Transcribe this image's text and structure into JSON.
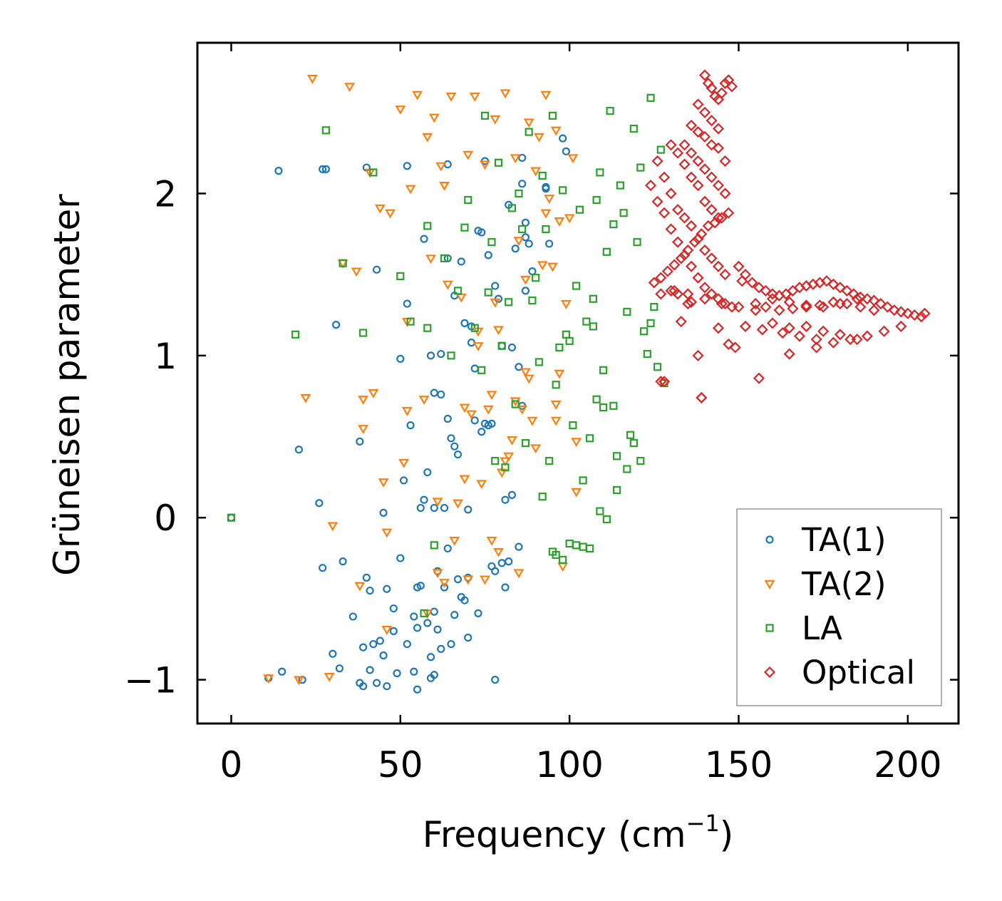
{
  "chart_data": {
    "type": "scatter",
    "title": "",
    "xlabel": "Frequency (cm",
    "xlabel_sup": "−1",
    "xlabel_close": ")",
    "ylabel": "Grüneisen parameter",
    "xlim": [
      -10,
      215
    ],
    "ylim": [
      -1.27,
      2.93
    ],
    "xticks": [
      0,
      50,
      100,
      150,
      200
    ],
    "yticks": [
      -1,
      0,
      1,
      2
    ],
    "xtick_labels": [
      "0",
      "50",
      "100",
      "150",
      "200"
    ],
    "ytick_labels": [
      "−1",
      "0",
      "1",
      "2"
    ],
    "grid": false,
    "legend_position": "lower-right",
    "colors": {
      "TA(1)": "#1f77b4",
      "TA(2)": "#ff7f0e",
      "LA": "#2ca02c",
      "Optical": "#d62728"
    },
    "series": [
      {
        "name": "TA(1)",
        "marker": "circle",
        "x": [
          0,
          11,
          15,
          20,
          26,
          27,
          28,
          30,
          31,
          32,
          33,
          36,
          38,
          39,
          40,
          41,
          41,
          43,
          44,
          45,
          46,
          46,
          48,
          50,
          50,
          51,
          52,
          52,
          53,
          54,
          54,
          55,
          55,
          56,
          56,
          57,
          57,
          58,
          58,
          59,
          59,
          60,
          60,
          60,
          61,
          61,
          62,
          62,
          63,
          63,
          64,
          64,
          64,
          65,
          65,
          66,
          66,
          66,
          67,
          67,
          68,
          68,
          69,
          69,
          70,
          70,
          71,
          71,
          72,
          72,
          73,
          73,
          74,
          74,
          75,
          76,
          76,
          77,
          77,
          78,
          78,
          79,
          80,
          80,
          81,
          81,
          82,
          82,
          83,
          83,
          84,
          85,
          86,
          86,
          87,
          87,
          88,
          89,
          93,
          94,
          98,
          14,
          27,
          40,
          52,
          64,
          75,
          86,
          99,
          87,
          93,
          21,
          43,
          55,
          78,
          85,
          70,
          60,
          48,
          39,
          49,
          45,
          38,
          42,
          59,
          62
        ],
        "y": [
          0,
          -0.99,
          -0.95,
          0.42,
          0.09,
          -0.31,
          2.15,
          -0.84,
          1.19,
          -0.93,
          -0.27,
          -0.61,
          0.47,
          -0.8,
          -0.37,
          -0.94,
          -0.45,
          1.53,
          -0.76,
          0.03,
          -1.04,
          -0.44,
          -0.56,
          0.98,
          -0.25,
          0.23,
          1.32,
          -0.78,
          0.57,
          -0.61,
          -0.95,
          -0.43,
          -0.68,
          0.06,
          -0.42,
          1.72,
          0.11,
          0.28,
          -0.65,
          1.0,
          -0.86,
          0.77,
          0.06,
          -0.58,
          -0.33,
          -0.69,
          1.01,
          0.76,
          0.06,
          -0.43,
          0.61,
          -0.19,
          1.6,
          0.49,
          -0.78,
          0.44,
          1.37,
          -0.6,
          0.39,
          -0.38,
          1.58,
          -0.49,
          1.2,
          -0.51,
          0.05,
          -0.37,
          1.18,
          1.08,
          0.6,
          0.92,
          1.77,
          -0.59,
          0.53,
          1.76,
          0.58,
          0.57,
          1.62,
          -0.3,
          0.58,
          -0.33,
          1.43,
          1.35,
          -0.28,
          1.06,
          0.11,
          -0.43,
          1.93,
          -0.27,
          1.05,
          0.14,
          1.66,
          0.93,
          2.06,
          0.69,
          1.73,
          1.4,
          1.69,
          1.52,
          2.04,
          1.69,
          2.34,
          2.14,
          2.15,
          2.16,
          2.17,
          2.18,
          2.2,
          2.22,
          2.26,
          1.82,
          2.03,
          -1.0,
          -1.02,
          -1.06,
          -1.0,
          -0.18,
          -0.74,
          -0.97,
          -0.7,
          -1.04,
          -0.96,
          -0.85,
          -1.02,
          -0.78,
          -0.99,
          -0.81
        ]
      },
      {
        "name": "TA(2)",
        "marker": "triangle-down",
        "x": [
          11,
          20,
          22,
          24,
          29,
          30,
          33,
          35,
          37,
          38,
          39,
          42,
          44,
          45,
          46,
          47,
          50,
          51,
          52,
          53,
          55,
          57,
          59,
          60,
          61,
          62,
          63,
          64,
          65,
          67,
          68,
          69,
          70,
          71,
          72,
          73,
          74,
          75,
          76,
          77,
          78,
          79,
          80,
          81,
          82,
          83,
          84,
          85,
          86,
          87,
          88,
          89,
          90,
          91,
          92,
          93,
          94,
          95,
          96,
          97,
          98,
          99,
          100,
          101,
          102,
          96,
          90,
          85,
          79,
          75,
          70,
          66,
          61,
          52,
          58,
          46,
          39,
          41,
          58,
          63,
          77,
          81,
          88,
          96,
          102,
          97,
          93,
          87,
          84,
          78,
          73,
          69
        ],
        "y": [
          -0.99,
          -1.0,
          0.74,
          2.71,
          -0.98,
          -0.05,
          1.57,
          2.66,
          1.52,
          -0.42,
          0.73,
          0.77,
          1.91,
          0.22,
          -0.09,
          1.88,
          2.52,
          0.34,
          1.21,
          2.03,
          2.61,
          0.73,
          1.6,
          2.47,
          0.1,
          2.17,
          2.05,
          1.44,
          2.6,
          0.09,
          1.36,
          0.24,
          2.24,
          0.64,
          2.6,
          1.15,
          0.21,
          2.18,
          0.67,
          0.76,
          2.46,
          1.16,
          0.28,
          2.62,
          0.38,
          0.48,
          2.22,
          1.71,
          0.67,
          1.47,
          2.44,
          0.6,
          2.14,
          2.35,
          1.56,
          2.61,
          1.97,
          1.55,
          0.7,
          1.83,
          -0.3,
          1.32,
          1.85,
          2.22,
          0.47,
          2.39,
          0.43,
          -0.34,
          -0.21,
          -0.38,
          -0.38,
          -0.14,
          -0.34,
          0.66,
          -0.59,
          -0.69,
          0.55,
          2.13,
          2.35,
          -0.4,
          -0.14,
          0.35,
          0.86,
          0.6,
          0.16,
          0.89,
          1.88,
          0.9,
          0.72,
          1.33,
          1.06,
          0.68
        ]
      },
      {
        "name": "LA",
        "marker": "square",
        "x": [
          0,
          19,
          28,
          33,
          39,
          42,
          50,
          53,
          57,
          58,
          58,
          60,
          63,
          65,
          67,
          69,
          70,
          72,
          74,
          75,
          76,
          77,
          78,
          79,
          80,
          81,
          82,
          83,
          84,
          85,
          86,
          87,
          88,
          89,
          90,
          91,
          92,
          93,
          94,
          95,
          96,
          97,
          98,
          99,
          100,
          101,
          102,
          103,
          104,
          105,
          106,
          107,
          108,
          109,
          110,
          111,
          112,
          113,
          114,
          115,
          116,
          117,
          118,
          119,
          120,
          121,
          122,
          123,
          124,
          125,
          126,
          127,
          128,
          100,
          102,
          104,
          106,
          96,
          98,
          92,
          95,
          109,
          111,
          114,
          119,
          121,
          113,
          108,
          117,
          124,
          110,
          107
        ],
        "y": [
          0,
          1.13,
          2.39,
          1.57,
          1.14,
          2.13,
          1.49,
          1.21,
          -0.59,
          1.17,
          1.8,
          -0.17,
          1.6,
          1.0,
          1.4,
          1.79,
          1.96,
          1.17,
          0.91,
          2.48,
          1.39,
          1.7,
          0.35,
          2.19,
          1.06,
          0.31,
          1.33,
          1.91,
          0.7,
          2.0,
          1.78,
          0.46,
          2.38,
          1.34,
          1.48,
          0.96,
          2.11,
          1.78,
          0.35,
          2.48,
          0.82,
          1.05,
          2.02,
          1.13,
          1.09,
          0.57,
          1.43,
          1.9,
          0.23,
          1.21,
          0.49,
          1.18,
          1.96,
          2.13,
          0.68,
          1.64,
          2.51,
          1.81,
          0.38,
          2.05,
          1.88,
          1.27,
          0.51,
          2.4,
          1.7,
          2.16,
          1.15,
          1.01,
          2.59,
          1.3,
          0.93,
          2.27,
          0.83,
          -0.16,
          -0.17,
          -0.18,
          -0.19,
          -0.23,
          -0.26,
          0.13,
          -0.21,
          0.04,
          -0.01,
          0.17,
          0.46,
          0.35,
          0.69,
          0.73,
          0.3,
          1.2,
          0.91,
          1.35
        ]
      },
      {
        "name": "Optical",
        "marker": "diamond",
        "x": [
          128,
          132,
          135,
          138,
          139,
          140,
          141,
          142,
          143,
          144,
          145,
          146,
          147,
          148,
          138,
          140,
          142,
          144,
          136,
          138,
          140,
          142,
          144,
          146,
          134,
          136,
          138,
          140,
          142,
          144,
          146,
          130,
          132,
          134,
          136,
          138,
          140,
          142,
          144,
          126,
          128,
          130,
          132,
          134,
          136,
          138,
          140,
          142,
          144,
          146,
          124,
          126,
          128,
          130,
          132,
          134,
          136,
          138,
          140,
          142,
          144,
          146,
          148,
          125,
          127,
          129,
          131,
          133,
          135,
          137,
          139,
          141,
          143,
          145,
          147,
          150,
          152,
          154,
          156,
          158,
          160,
          162,
          164,
          166,
          168,
          170,
          172,
          174,
          176,
          178,
          180,
          182,
          184,
          186,
          188,
          190,
          192,
          194,
          196,
          198,
          200,
          202,
          204,
          205,
          155,
          158,
          162,
          166,
          170,
          174,
          178,
          182,
          186,
          190,
          160,
          165,
          170,
          175,
          180,
          185,
          130,
          135,
          140,
          145,
          150,
          155,
          160,
          165,
          170,
          175,
          180,
          185,
          152,
          157,
          163,
          168,
          173,
          178,
          183,
          188,
          193,
          198,
          127,
          139,
          149,
          156,
          165,
          173,
          144,
          136,
          131,
          127,
          133,
          147,
          151
        ],
        "y": [
          0.84,
          1.38,
          1.32,
          1.0,
          0.74,
          2.73,
          2.68,
          2.65,
          2.6,
          2.58,
          2.62,
          2.68,
          2.7,
          2.66,
          2.55,
          2.5,
          2.45,
          2.4,
          2.42,
          2.38,
          2.35,
          2.3,
          2.28,
          2.2,
          2.3,
          2.25,
          2.2,
          2.15,
          2.1,
          2.05,
          2.0,
          2.3,
          2.25,
          2.18,
          2.1,
          2.05,
          1.95,
          1.9,
          1.85,
          2.2,
          2.1,
          2.0,
          1.9,
          1.85,
          1.8,
          1.72,
          1.65,
          1.6,
          1.55,
          1.5,
          2.05,
          1.95,
          1.88,
          1.78,
          1.7,
          1.62,
          1.55,
          1.48,
          1.42,
          1.38,
          1.35,
          1.32,
          1.3,
          1.45,
          1.48,
          1.52,
          1.56,
          1.6,
          1.65,
          1.7,
          1.75,
          1.8,
          1.82,
          1.85,
          1.88,
          1.55,
          1.5,
          1.45,
          1.42,
          1.4,
          1.38,
          1.37,
          1.38,
          1.4,
          1.42,
          1.43,
          1.44,
          1.45,
          1.46,
          1.44,
          1.42,
          1.4,
          1.38,
          1.36,
          1.35,
          1.34,
          1.32,
          1.3,
          1.28,
          1.27,
          1.26,
          1.25,
          1.24,
          1.26,
          1.32,
          1.3,
          1.28,
          1.29,
          1.3,
          1.31,
          1.33,
          1.32,
          1.3,
          1.28,
          1.2,
          1.17,
          1.18,
          1.15,
          1.13,
          1.1,
          1.4,
          1.38,
          1.35,
          1.32,
          1.3,
          1.28,
          1.35,
          1.33,
          1.31,
          1.3,
          1.32,
          1.35,
          1.18,
          1.16,
          1.14,
          1.12,
          1.1,
          1.08,
          1.1,
          1.12,
          1.15,
          1.18,
          0.84,
          0.74,
          1.05,
          0.86,
          1.01,
          1.05,
          1.17,
          1.33,
          1.4,
          1.38,
          1.21,
          1.07,
          1.46
        ]
      }
    ]
  }
}
